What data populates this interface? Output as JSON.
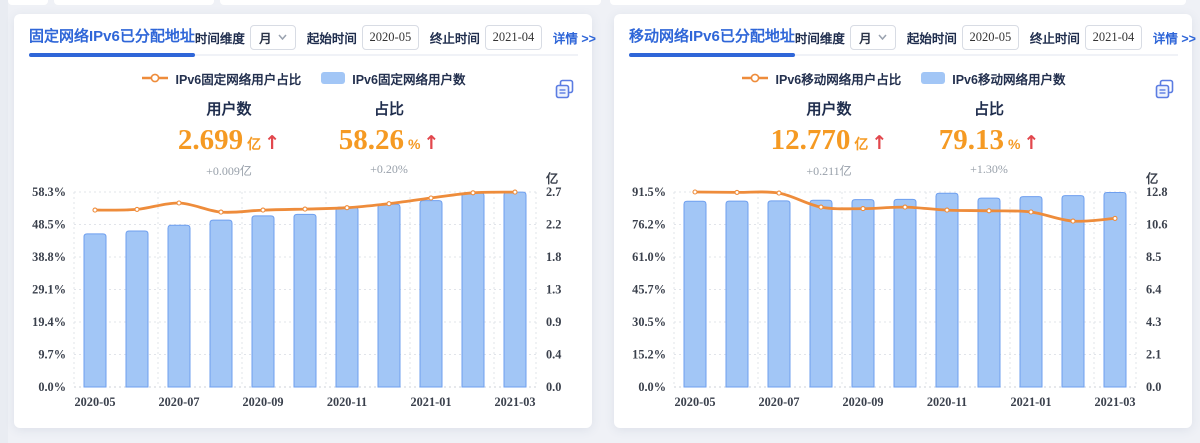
{
  "colors": {
    "accent_blue": "#2f66d8",
    "kpi_orange": "#f59a23",
    "line_orange": "#ee8c3b",
    "bar_fill": "#a2c6f6",
    "bar_border": "#6e9fef",
    "arrow_red": "#e2474d",
    "text_dark": "#1f2d4d",
    "axis_text": "#3a404c",
    "delta_gray": "#98a0aa"
  },
  "icons": {
    "up_arrow": "↑",
    "copy_icon": "overlapping-pages",
    "chevron_down": "v"
  },
  "panels": [
    {
      "title": "固定网络IPv6已分配地址",
      "controls": {
        "dim_label": "时间维度",
        "dim_value": "月",
        "start_label": "起始时间",
        "start_value": "2020-05",
        "end_label": "终止时间",
        "end_value": "2021-04",
        "detail_label": "详情 >>"
      },
      "legend": [
        {
          "type": "line",
          "label": "IPv6固定网络用户占比"
        },
        {
          "type": "bar",
          "label": "IPv6固定网络用户数"
        }
      ],
      "metrics": [
        {
          "label": "用户数",
          "value": "2.699",
          "unit": "亿",
          "delta": "+0.009亿"
        },
        {
          "label": "占比",
          "value": "58.26",
          "unit": "%",
          "delta": "+0.20%"
        }
      ]
    },
    {
      "title": "移动网络IPv6已分配地址",
      "controls": {
        "dim_label": "时间维度",
        "dim_value": "月",
        "start_label": "起始时间",
        "start_value": "2020-05",
        "end_label": "终止时间",
        "end_value": "2021-04",
        "detail_label": "详情 >>"
      },
      "legend": [
        {
          "type": "line",
          "label": "IPv6移动网络用户占比"
        },
        {
          "type": "bar",
          "label": "IPv6移动网络用户数"
        }
      ],
      "metrics": [
        {
          "label": "用户数",
          "value": "12.770",
          "unit": "亿",
          "delta": "+0.211亿"
        },
        {
          "label": "占比",
          "value": "79.13",
          "unit": "%",
          "delta": "+1.30%"
        }
      ]
    }
  ],
  "chart_data": [
    {
      "type": "bar",
      "subtype": "bar-line-dual-axis",
      "categories": [
        "2020-05",
        "2020-06",
        "2020-07",
        "2020-08",
        "2020-09",
        "2020-10",
        "2020-11",
        "2020-12",
        "2021-01",
        "2021-02",
        "2021-03"
      ],
      "x_labels_shown": [
        "2020-05",
        "2020-07",
        "2020-09",
        "2020-11",
        "2021-01",
        "2021-03"
      ],
      "series": [
        {
          "name": "IPv6固定网络用户占比",
          "type": "line",
          "y_axis": "left",
          "color": "#ee8c3b",
          "values": [
            52.9,
            53.1,
            55.0,
            52.3,
            52.9,
            53.2,
            53.6,
            54.8,
            56.5,
            58.06,
            58.26
          ]
        },
        {
          "name": "IPv6固定网络用户数",
          "type": "bar",
          "y_axis": "right",
          "color": "#a2c6f6",
          "values": [
            2.12,
            2.16,
            2.24,
            2.31,
            2.37,
            2.39,
            2.49,
            2.53,
            2.58,
            2.69,
            2.699
          ]
        }
      ],
      "y_left": {
        "ticks": [
          "0.0%",
          "9.7%",
          "19.4%",
          "29.1%",
          "38.8%",
          "48.5%",
          "58.3%"
        ],
        "max": 58.3
      },
      "y_right": {
        "ticks": [
          "0.0",
          "0.4",
          "0.9",
          "1.3",
          "1.8",
          "2.2",
          "2.7"
        ],
        "max": 2.7,
        "unit": "亿"
      },
      "grid": "dotted",
      "legend_position": "top"
    },
    {
      "type": "bar",
      "subtype": "bar-line-dual-axis",
      "categories": [
        "2020-05",
        "2020-06",
        "2020-07",
        "2020-08",
        "2020-09",
        "2020-10",
        "2020-11",
        "2020-12",
        "2021-01",
        "2021-02",
        "2021-03"
      ],
      "x_labels_shown": [
        "2020-05",
        "2020-07",
        "2020-09",
        "2020-11",
        "2021-01",
        "2021-03"
      ],
      "series": [
        {
          "name": "IPv6移动网络用户占比",
          "type": "line",
          "y_axis": "left",
          "color": "#ee8c3b",
          "values": [
            91.5,
            91.3,
            91.0,
            84.4,
            83.7,
            84.4,
            83.0,
            82.7,
            82.1,
            77.83,
            79.13
          ]
        },
        {
          "name": "IPv6移动网络用户数",
          "type": "bar",
          "y_axis": "right",
          "color": "#a2c6f6",
          "values": [
            12.19,
            12.2,
            12.22,
            12.26,
            12.3,
            12.32,
            12.72,
            12.4,
            12.5,
            12.56,
            12.77
          ]
        }
      ],
      "y_left": {
        "ticks": [
          "0.0%",
          "15.2%",
          "30.5%",
          "45.7%",
          "61.0%",
          "76.2%",
          "91.5%"
        ],
        "max": 91.5
      },
      "y_right": {
        "ticks": [
          "0.0",
          "2.1",
          "4.3",
          "6.4",
          "8.5",
          "10.6",
          "12.8"
        ],
        "max": 12.8,
        "unit": "亿"
      },
      "grid": "dotted",
      "legend_position": "top"
    }
  ]
}
